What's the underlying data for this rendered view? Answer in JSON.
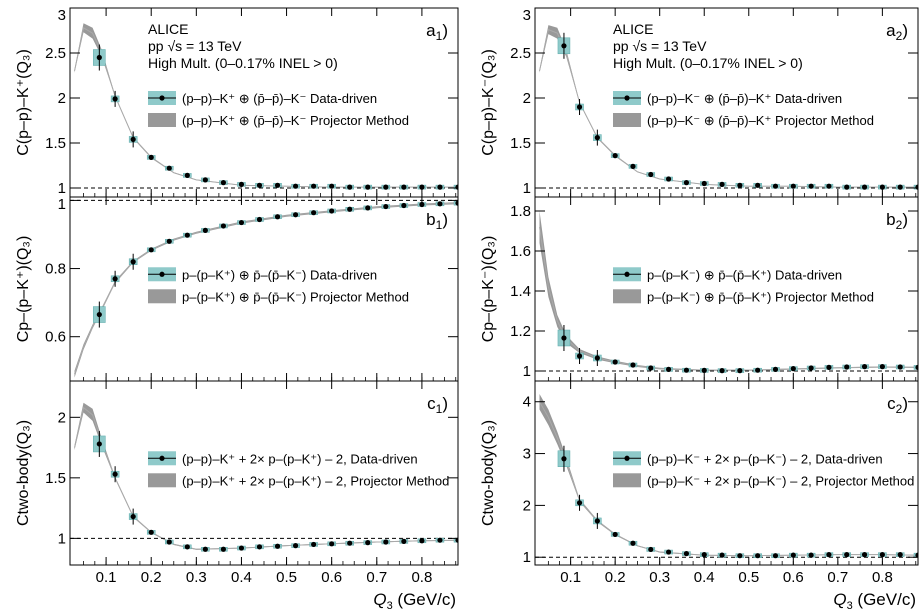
{
  "common": {
    "xlabel_main": "Q",
    "xlabel_sub": "3",
    "xlabel_unit": " (GeV/c)",
    "xticks": [
      0.1,
      0.2,
      0.3,
      0.4,
      0.5,
      0.6,
      0.7,
      0.8
    ],
    "xlim": [
      0.02,
      0.88
    ],
    "colors": {
      "data_box": "#8fcaca",
      "band": "#999999",
      "line": "#aaaaaa",
      "point": "#000000"
    }
  },
  "header": {
    "line1": "ALICE",
    "line2": "pp √s = 13 TeV",
    "line3": "High Mult. (0–0.17% INEL > 0)"
  },
  "chart_data": [
    {
      "type": "scatter",
      "panel": "a1",
      "col": 0,
      "row": 0,
      "panel_label": "a",
      "panel_label_sub": "1",
      "ylabel": "C(p–p)–K⁺(Q₃)",
      "ylim": [
        0.9,
        3.0
      ],
      "yticks": [
        1.0,
        1.5,
        2.0,
        2.5,
        3.0
      ],
      "reference": 1.0,
      "show_header": true,
      "legend": {
        "data": "(p–p)–K⁺ ⊕ (p̄–p̄)–K⁻ Data-driven",
        "band": "(p–p)–K⁺ ⊕ (p̄–p̄)–K⁻ Projector Method"
      },
      "x": [
        0.085,
        0.12,
        0.16,
        0.2,
        0.24,
        0.28,
        0.32,
        0.36,
        0.4,
        0.44,
        0.48,
        0.52,
        0.56,
        0.6,
        0.64,
        0.68,
        0.72,
        0.76,
        0.8,
        0.84,
        0.88
      ],
      "y": [
        2.45,
        1.99,
        1.54,
        1.34,
        1.22,
        1.14,
        1.09,
        1.06,
        1.04,
        1.03,
        1.03,
        1.02,
        1.02,
        1.02,
        1.01,
        1.01,
        1.01,
        1.01,
        1.01,
        1.01,
        1.01
      ],
      "band_x": [
        0.03,
        0.05,
        0.07,
        0.09,
        0.12,
        0.16,
        0.2,
        0.25,
        0.3,
        0.4,
        0.5,
        0.6,
        0.7,
        0.8,
        0.88
      ],
      "band_y": [
        2.3,
        2.78,
        2.72,
        2.5,
        2.02,
        1.56,
        1.34,
        1.17,
        1.09,
        1.03,
        1.02,
        1.01,
        1.01,
        1.01,
        1.01
      ],
      "band_w": [
        0.02,
        0.05,
        0.06,
        0.04,
        0.01,
        0.01,
        0.01,
        0.005,
        0.005,
        0.003,
        0.003,
        0.003,
        0.003,
        0.003,
        0.003
      ]
    },
    {
      "type": "scatter",
      "panel": "b1",
      "col": 0,
      "row": 1,
      "panel_label": "b",
      "panel_label_sub": "1",
      "ylabel": "Cp–(p–K⁺)(Q₃)",
      "ylim": [
        0.47,
        1.01
      ],
      "yticks": [
        0.6,
        0.8,
        1.0
      ],
      "reference": 1.0,
      "show_header": false,
      "legend": {
        "data": "p–(p–K⁺) ⊕ p̄–(p̄–K⁻) Data-driven",
        "band": "p–(p–K⁺) ⊕ p̄–(p̄–K⁻) Projector Method"
      },
      "x": [
        0.085,
        0.12,
        0.16,
        0.2,
        0.24,
        0.28,
        0.32,
        0.36,
        0.4,
        0.44,
        0.48,
        0.52,
        0.56,
        0.6,
        0.64,
        0.68,
        0.72,
        0.76,
        0.8,
        0.84,
        0.88
      ],
      "y": [
        0.665,
        0.77,
        0.82,
        0.855,
        0.88,
        0.898,
        0.912,
        0.925,
        0.935,
        0.944,
        0.952,
        0.958,
        0.964,
        0.969,
        0.974,
        0.978,
        0.982,
        0.985,
        0.988,
        0.99,
        0.992
      ],
      "band_x": [
        0.03,
        0.05,
        0.07,
        0.09,
        0.12,
        0.16,
        0.2,
        0.25,
        0.3,
        0.4,
        0.5,
        0.6,
        0.7,
        0.8,
        0.88
      ],
      "band_y": [
        0.49,
        0.57,
        0.63,
        0.68,
        0.76,
        0.82,
        0.855,
        0.885,
        0.905,
        0.935,
        0.955,
        0.968,
        0.98,
        0.988,
        0.992
      ],
      "band_w": [
        0.01,
        0.008,
        0.006,
        0.005,
        0.004,
        0.003,
        0.003,
        0.003,
        0.003,
        0.003,
        0.003,
        0.003,
        0.003,
        0.003,
        0.003
      ]
    },
    {
      "type": "scatter",
      "panel": "c1",
      "col": 0,
      "row": 2,
      "panel_label": "c",
      "panel_label_sub": "1",
      "ylabel": "Ctwo-body(Q₃)",
      "ylim": [
        0.78,
        2.3
      ],
      "yticks": [
        1.0,
        1.5,
        2.0
      ],
      "reference": 1.0,
      "show_header": false,
      "legend": {
        "data": "(p–p)–K⁺ + 2× p–(p–K⁺) – 2,  Data-driven",
        "band": "(p–p)–K⁺ + 2× p–(p–K⁺) – 2,  Projector Method"
      },
      "x": [
        0.085,
        0.12,
        0.16,
        0.2,
        0.24,
        0.28,
        0.32,
        0.36,
        0.4,
        0.44,
        0.48,
        0.52,
        0.56,
        0.6,
        0.64,
        0.68,
        0.72,
        0.76,
        0.8,
        0.84,
        0.88
      ],
      "y": [
        1.78,
        1.53,
        1.18,
        1.05,
        0.97,
        0.93,
        0.91,
        0.91,
        0.92,
        0.93,
        0.935,
        0.94,
        0.95,
        0.955,
        0.96,
        0.965,
        0.97,
        0.975,
        0.98,
        0.985,
        0.985
      ],
      "band_x": [
        0.03,
        0.05,
        0.07,
        0.09,
        0.12,
        0.16,
        0.2,
        0.25,
        0.3,
        0.4,
        0.5,
        0.6,
        0.7,
        0.8,
        0.88
      ],
      "band_y": [
        1.75,
        2.08,
        2.02,
        1.8,
        1.5,
        1.18,
        1.05,
        0.95,
        0.91,
        0.92,
        0.94,
        0.955,
        0.97,
        0.98,
        0.985
      ],
      "band_w": [
        0.02,
        0.04,
        0.05,
        0.03,
        0.01,
        0.008,
        0.006,
        0.005,
        0.005,
        0.004,
        0.004,
        0.004,
        0.004,
        0.004,
        0.004
      ]
    },
    {
      "type": "scatter",
      "panel": "a2",
      "col": 1,
      "row": 0,
      "panel_label": "a",
      "panel_label_sub": "2",
      "ylabel": "C(p–p)–K⁻(Q₃)",
      "ylim": [
        0.9,
        3.0
      ],
      "yticks": [
        1.0,
        1.5,
        2.0,
        2.5,
        3.0
      ],
      "reference": 1.0,
      "show_header": true,
      "legend": {
        "data": "(p–p)–K⁻ ⊕ (p̄–p̄)–K⁺ Data-driven",
        "band": "(p–p)–K⁻ ⊕ (p̄–p̄)–K⁺ Projector Method"
      },
      "x": [
        0.085,
        0.12,
        0.16,
        0.2,
        0.24,
        0.28,
        0.32,
        0.36,
        0.4,
        0.44,
        0.48,
        0.52,
        0.56,
        0.6,
        0.64,
        0.68,
        0.72,
        0.76,
        0.8,
        0.84,
        0.88
      ],
      "y": [
        2.58,
        1.9,
        1.56,
        1.36,
        1.24,
        1.15,
        1.1,
        1.06,
        1.05,
        1.04,
        1.03,
        1.03,
        1.02,
        1.02,
        1.02,
        1.02,
        1.01,
        1.01,
        1.01,
        1.01,
        1.01
      ],
      "band_x": [
        0.03,
        0.05,
        0.07,
        0.09,
        0.12,
        0.16,
        0.2,
        0.25,
        0.3,
        0.4,
        0.5,
        0.6,
        0.7,
        0.8,
        0.88
      ],
      "band_y": [
        2.3,
        2.76,
        2.72,
        2.5,
        1.95,
        1.56,
        1.36,
        1.18,
        1.1,
        1.04,
        1.02,
        1.02,
        1.01,
        1.01,
        1.01
      ],
      "band_w": [
        0.02,
        0.05,
        0.06,
        0.04,
        0.01,
        0.01,
        0.01,
        0.005,
        0.005,
        0.003,
        0.003,
        0.003,
        0.003,
        0.003,
        0.003
      ]
    },
    {
      "type": "scatter",
      "panel": "b2",
      "col": 1,
      "row": 1,
      "panel_label": "b",
      "panel_label_sub": "2",
      "ylabel": "Cp–(p–K⁻)(Q₃)",
      "ylim": [
        0.95,
        1.87
      ],
      "yticks": [
        1.0,
        1.2,
        1.4,
        1.6,
        1.8
      ],
      "reference": 1.0,
      "show_header": false,
      "legend": {
        "data": "p–(p–K⁻) ⊕ p̄–(p̄–K⁺) Data-driven",
        "band": "p–(p–K⁻) ⊕ p̄–(p̄–K⁺) Projector Method"
      },
      "x": [
        0.085,
        0.12,
        0.16,
        0.2,
        0.24,
        0.28,
        0.32,
        0.36,
        0.4,
        0.44,
        0.48,
        0.52,
        0.56,
        0.6,
        0.64,
        0.68,
        0.72,
        0.76,
        0.8,
        0.84,
        0.88
      ],
      "y": [
        1.165,
        1.075,
        1.065,
        1.045,
        1.03,
        1.015,
        1.008,
        1.004,
        1.003,
        1.002,
        1.002,
        1.004,
        1.008,
        1.012,
        1.015,
        1.018,
        1.02,
        1.022,
        1.022,
        1.02,
        1.018
      ],
      "band_x": [
        0.03,
        0.05,
        0.07,
        0.09,
        0.12,
        0.16,
        0.2,
        0.25,
        0.3,
        0.4,
        0.5,
        0.6,
        0.7,
        0.8,
        0.88
      ],
      "band_y": [
        1.72,
        1.42,
        1.25,
        1.16,
        1.1,
        1.065,
        1.045,
        1.025,
        1.012,
        1.004,
        1.004,
        1.01,
        1.016,
        1.02,
        1.018
      ],
      "band_w": [
        0.08,
        0.05,
        0.03,
        0.02,
        0.01,
        0.008,
        0.006,
        0.005,
        0.004,
        0.003,
        0.003,
        0.003,
        0.003,
        0.003,
        0.003
      ]
    },
    {
      "type": "scatter",
      "panel": "c2",
      "col": 1,
      "row": 2,
      "panel_label": "c",
      "panel_label_sub": "2",
      "ylabel": "Ctwo-body(Q₃)",
      "ylim": [
        0.85,
        4.4
      ],
      "yticks": [
        1,
        2,
        3,
        4
      ],
      "reference": 1.0,
      "show_header": false,
      "legend": {
        "data": "(p–p)–K⁻ + 2× p–(p–K⁻) – 2,  Data-driven",
        "band": "(p–p)–K⁻ + 2× p–(p–K⁻) – 2,  Projector Method"
      },
      "x": [
        0.085,
        0.12,
        0.16,
        0.2,
        0.24,
        0.28,
        0.32,
        0.36,
        0.4,
        0.44,
        0.48,
        0.52,
        0.56,
        0.6,
        0.64,
        0.68,
        0.72,
        0.76,
        0.8,
        0.84,
        0.88
      ],
      "y": [
        2.9,
        2.05,
        1.7,
        1.44,
        1.27,
        1.15,
        1.1,
        1.07,
        1.05,
        1.04,
        1.03,
        1.03,
        1.03,
        1.04,
        1.04,
        1.05,
        1.05,
        1.05,
        1.05,
        1.05,
        1.04
      ],
      "band_x": [
        0.03,
        0.05,
        0.07,
        0.09,
        0.12,
        0.16,
        0.2,
        0.25,
        0.3,
        0.4,
        0.5,
        0.6,
        0.7,
        0.8,
        0.88
      ],
      "band_y": [
        4.0,
        3.7,
        3.3,
        2.85,
        2.1,
        1.7,
        1.44,
        1.22,
        1.1,
        1.04,
        1.03,
        1.04,
        1.05,
        1.05,
        1.04
      ],
      "band_w": [
        0.15,
        0.15,
        0.12,
        0.08,
        0.03,
        0.02,
        0.015,
        0.01,
        0.01,
        0.008,
        0.008,
        0.008,
        0.008,
        0.008,
        0.008
      ]
    }
  ]
}
